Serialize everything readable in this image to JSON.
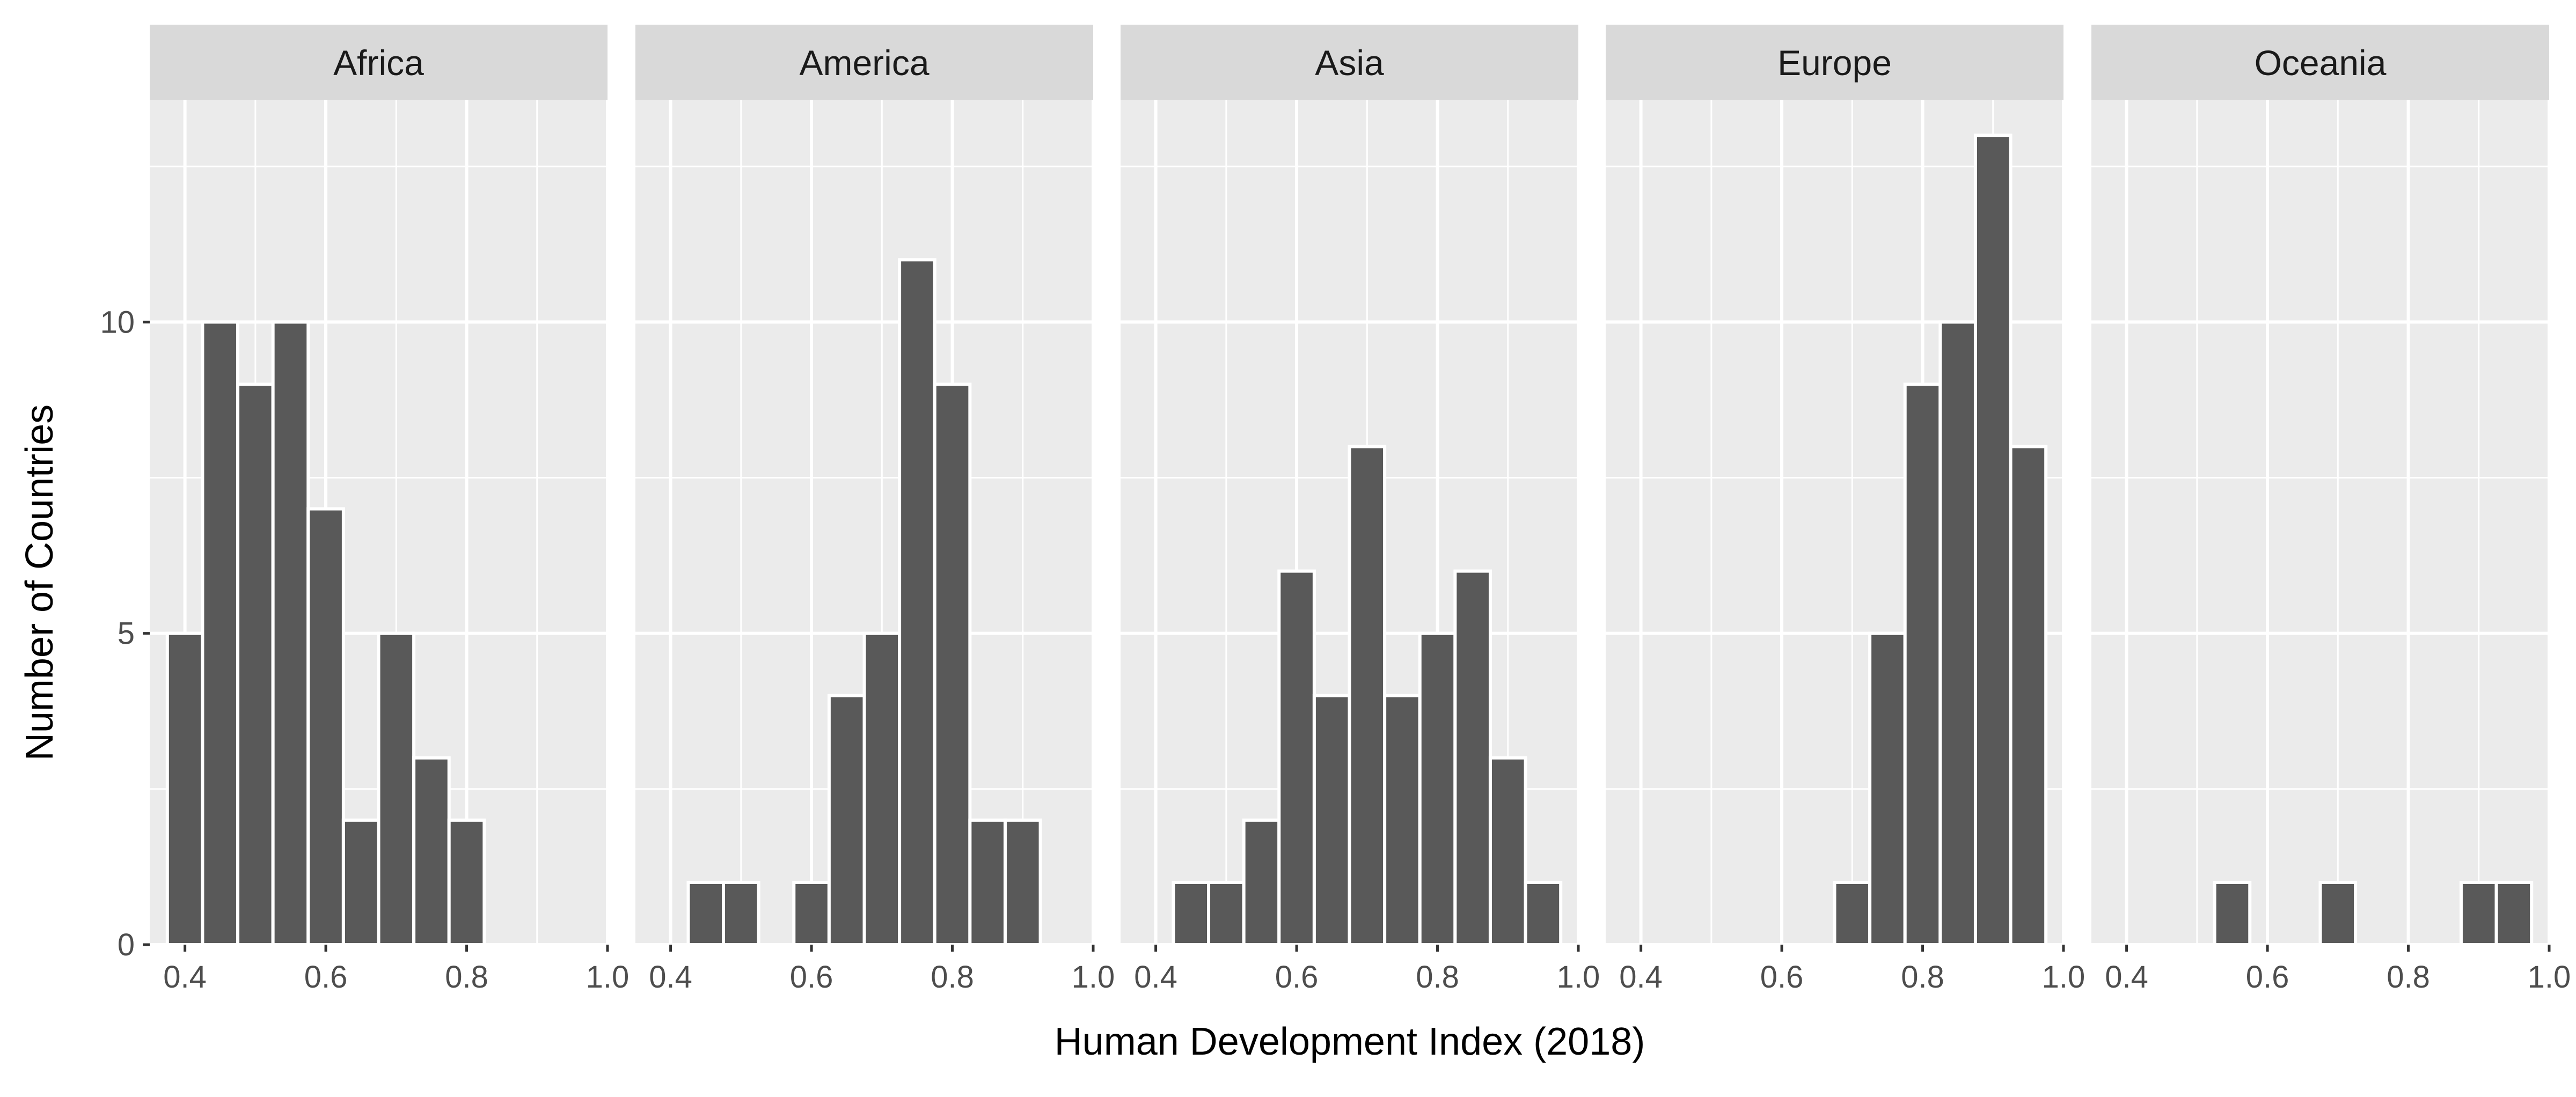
{
  "chart_data": {
    "type": "bar",
    "layout": "faceted histogram",
    "xlabel": "Human Development Index (2018)",
    "ylabel": "Number of Countries",
    "xlim": [
      0.35,
      1.0
    ],
    "ylim": [
      0,
      13
    ],
    "x_ticks": [
      "0.4",
      "0.6",
      "0.8",
      "1.0"
    ],
    "y_ticks": [
      "0",
      "5",
      "10"
    ],
    "grid": true,
    "bin_width": 0.05,
    "bar_color": "#595959",
    "facets": [
      {
        "name": "Africa",
        "bins": [
          {
            "x": 0.4,
            "count": 5
          },
          {
            "x": 0.45,
            "count": 10
          },
          {
            "x": 0.5,
            "count": 9
          },
          {
            "x": 0.55,
            "count": 10
          },
          {
            "x": 0.6,
            "count": 7
          },
          {
            "x": 0.65,
            "count": 2
          },
          {
            "x": 0.7,
            "count": 5
          },
          {
            "x": 0.75,
            "count": 3
          },
          {
            "x": 0.8,
            "count": 2
          }
        ]
      },
      {
        "name": "America",
        "bins": [
          {
            "x": 0.45,
            "count": 1
          },
          {
            "x": 0.5,
            "count": 1
          },
          {
            "x": 0.6,
            "count": 1
          },
          {
            "x": 0.65,
            "count": 4
          },
          {
            "x": 0.7,
            "count": 5
          },
          {
            "x": 0.75,
            "count": 11
          },
          {
            "x": 0.8,
            "count": 9
          },
          {
            "x": 0.85,
            "count": 2
          },
          {
            "x": 0.9,
            "count": 2
          }
        ]
      },
      {
        "name": "Asia",
        "bins": [
          {
            "x": 0.45,
            "count": 1
          },
          {
            "x": 0.5,
            "count": 1
          },
          {
            "x": 0.55,
            "count": 2
          },
          {
            "x": 0.6,
            "count": 6
          },
          {
            "x": 0.65,
            "count": 4
          },
          {
            "x": 0.7,
            "count": 8
          },
          {
            "x": 0.75,
            "count": 4
          },
          {
            "x": 0.8,
            "count": 5
          },
          {
            "x": 0.85,
            "count": 6
          },
          {
            "x": 0.9,
            "count": 3
          },
          {
            "x": 0.95,
            "count": 1
          }
        ]
      },
      {
        "name": "Europe",
        "bins": [
          {
            "x": 0.7,
            "count": 1
          },
          {
            "x": 0.75,
            "count": 5
          },
          {
            "x": 0.8,
            "count": 9
          },
          {
            "x": 0.85,
            "count": 10
          },
          {
            "x": 0.9,
            "count": 13
          },
          {
            "x": 0.95,
            "count": 8
          }
        ]
      },
      {
        "name": "Oceania",
        "bins": [
          {
            "x": 0.55,
            "count": 1
          },
          {
            "x": 0.7,
            "count": 1
          },
          {
            "x": 0.9,
            "count": 1
          },
          {
            "x": 0.95,
            "count": 1
          }
        ]
      }
    ]
  }
}
